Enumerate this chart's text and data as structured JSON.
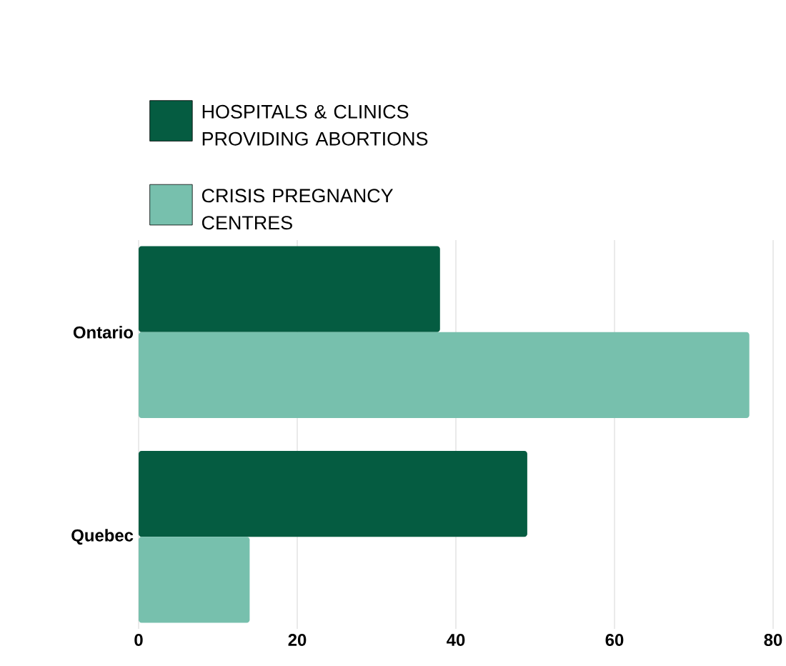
{
  "chart_data": {
    "type": "bar",
    "orientation": "horizontal",
    "categories": [
      "Ontario",
      "Quebec"
    ],
    "series": [
      {
        "name": "HOSPITALS & CLINICS PROVIDING ABORTIONS",
        "color": "#055c41",
        "values": [
          38,
          49
        ]
      },
      {
        "name": "CRISIS PREGNANCY CENTRES",
        "color": "#77c0ad",
        "values": [
          77,
          14
        ]
      }
    ],
    "xlim": [
      0,
      80
    ],
    "xticks": [
      0,
      20,
      40,
      60,
      80
    ],
    "grid": "x",
    "legend": "top left"
  }
}
